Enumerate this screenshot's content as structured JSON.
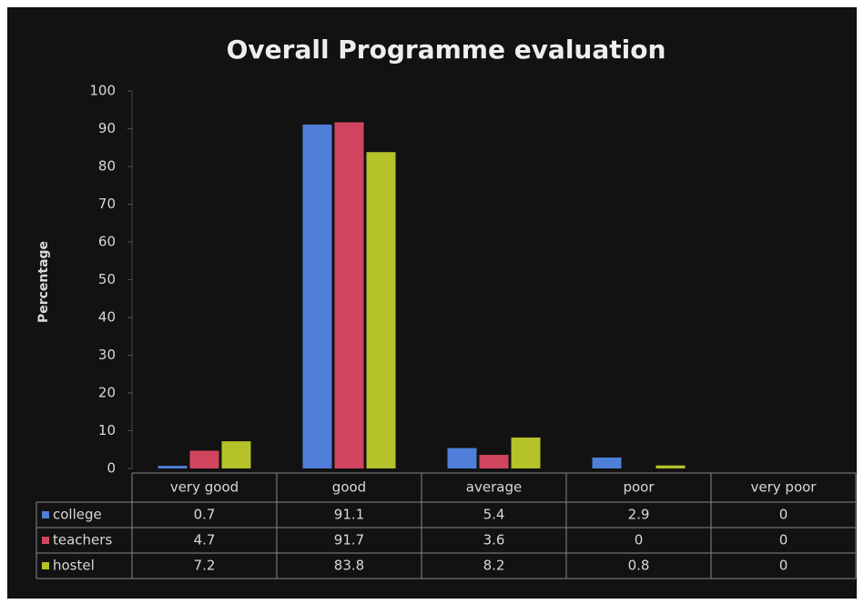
{
  "chart_data": {
    "type": "bar",
    "title": "Overall Programme evaluation",
    "y_label": "Percentage",
    "categories": [
      "very good",
      "good",
      "average",
      "poor",
      "very poor"
    ],
    "series": [
      {
        "name": "college",
        "color": "#4f7fd8",
        "values": [
          0.7,
          91.1,
          5.4,
          2.9,
          0
        ]
      },
      {
        "name": "teachers",
        "color": "#d2455f",
        "values": [
          4.7,
          91.7,
          3.6,
          0,
          0
        ]
      },
      {
        "name": "hostel",
        "color": "#b5c22a",
        "values": [
          7.2,
          83.8,
          8.2,
          0.8,
          0
        ]
      }
    ],
    "ylim": [
      0,
      100
    ],
    "yticks": [
      0,
      10,
      20,
      30,
      40,
      50,
      60,
      70,
      80,
      90,
      100
    ],
    "grid": false,
    "data_table": true
  }
}
